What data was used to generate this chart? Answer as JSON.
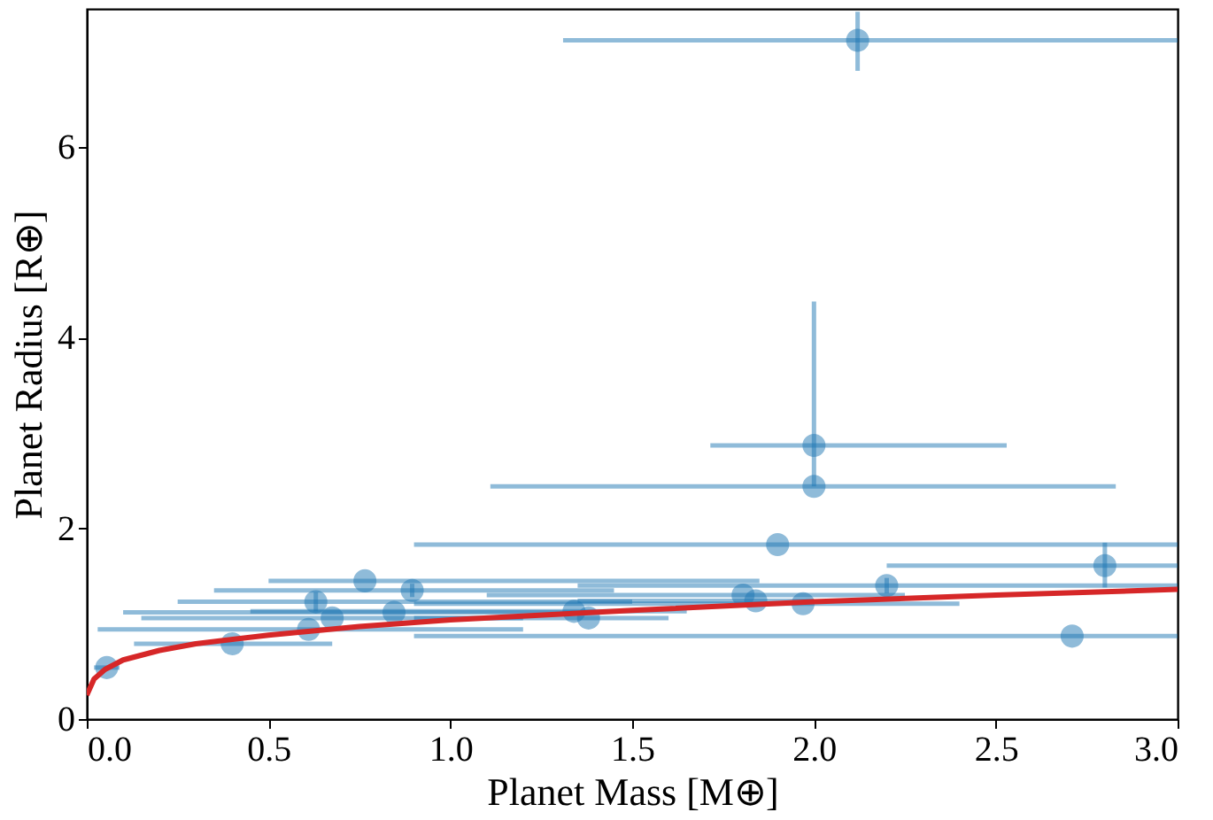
{
  "chart_data": {
    "type": "scatter",
    "xlabel": "Planet Mass [M⊕]",
    "ylabel": "Planet Radius [R⊕]",
    "xlim": [
      0,
      3.0
    ],
    "ylim": [
      0,
      7.45
    ],
    "xticks": [
      {
        "value": 0,
        "label": "0.0"
      },
      {
        "value": 0.5,
        "label": "0.5"
      },
      {
        "value": 1,
        "label": "1.0"
      },
      {
        "value": 1.5,
        "label": "1.5"
      },
      {
        "value": 2,
        "label": "2.0"
      },
      {
        "value": 2.5,
        "label": "2.5"
      },
      {
        "value": 3,
        "label": "3.0"
      }
    ],
    "yticks": [
      0,
      2,
      4,
      6
    ],
    "series": [
      {
        "color": "#1f77b4",
        "marker": "circle",
        "x": [
          0.055,
          0.4,
          0.61,
          0.63,
          0.675,
          0.765,
          0.845,
          0.895,
          1.34,
          1.38,
          1.805,
          1.84,
          1.97,
          1.9,
          2.0,
          2.0,
          2.2,
          2.71,
          2.8,
          2.12
        ],
        "values": [
          0.54,
          0.79,
          0.94,
          1.23,
          1.06,
          1.45,
          1.12,
          1.35,
          1.13,
          1.06,
          1.3,
          1.24,
          1.21,
          1.83,
          2.44,
          2.87,
          1.4,
          0.87,
          1.61,
          7.12
        ],
        "xerrors": [
          [
            0.02,
            0.09
          ],
          [
            0.13,
            0.675
          ],
          [
            0.03,
            1.2
          ],
          [
            0.25,
            1.5
          ],
          [
            0.15,
            1.2
          ],
          [
            0.5,
            1.85
          ],
          [
            0.1,
            1.4
          ],
          [
            0.35,
            1.45
          ],
          [
            0.45,
            1.65
          ],
          [
            0.9,
            1.6
          ],
          [
            1.1,
            2.25
          ],
          [
            1.35,
            2.0
          ],
          [
            0.9,
            2.4
          ],
          [
            0.9,
            3.0
          ],
          [
            1.11,
            2.83
          ],
          [
            1.715,
            2.53
          ],
          [
            1.35,
            3.0
          ],
          [
            0.9,
            3.0
          ],
          [
            2.2,
            3.0
          ],
          [
            1.31,
            3.0
          ]
        ],
        "errors": [
          null,
          null,
          null,
          [
            1.13,
            1.33
          ],
          null,
          null,
          null,
          [
            1.28,
            1.42
          ],
          null,
          null,
          null,
          null,
          null,
          null,
          null,
          [
            2.44,
            4.38
          ],
          [
            1.32,
            1.48
          ],
          null,
          [
            1.38,
            1.85
          ],
          [
            6.8,
            7.42
          ]
        ]
      },
      {
        "type": "line",
        "color": "#d62728",
        "x": [
          0,
          0.02,
          0.05,
          0.1,
          0.2,
          0.3,
          0.5,
          0.75,
          1,
          1.5,
          2,
          2.5,
          3
        ],
        "values": [
          0.25,
          0.42,
          0.52,
          0.62,
          0.72,
          0.79,
          0.88,
          0.97,
          1.04,
          1.14,
          1.23,
          1.3,
          1.36
        ]
      }
    ]
  }
}
